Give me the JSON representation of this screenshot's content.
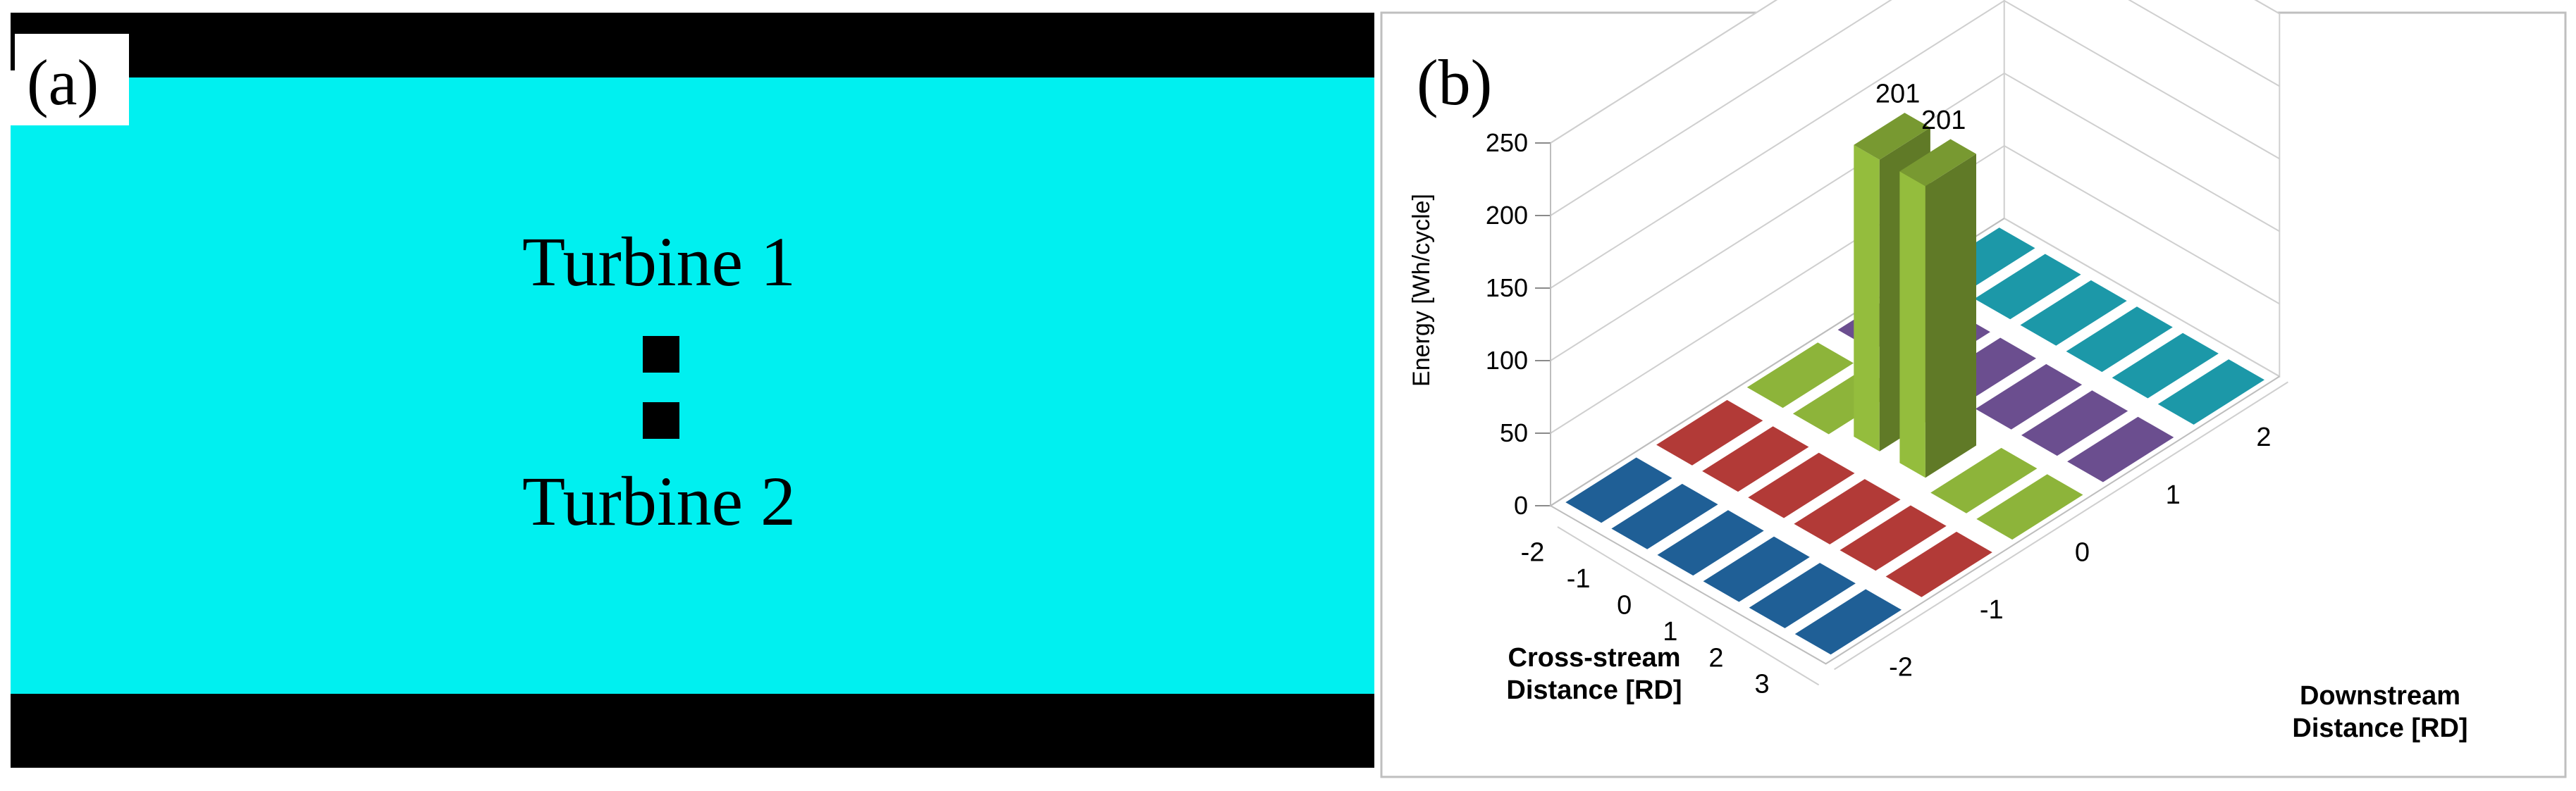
{
  "panel_a": {
    "label": "(a)",
    "turbine_1_label": "Turbine 1",
    "turbine_2_label": "Turbine 2",
    "colors": {
      "water": "#00f0f0",
      "wall": "#000000",
      "turbine": "#000000"
    }
  },
  "panel_b": {
    "label": "(b)"
  },
  "chart_data": {
    "type": "bar",
    "subtype": "3d-bar-grid",
    "title": "",
    "zlabel": "Energy [Wh/cycle]",
    "xlabel": "Cross-stream Distance [RD]",
    "ylabel": "Downstream Distance [RD]",
    "zlim": [
      0,
      250
    ],
    "zticks": [
      "0",
      "50",
      "100",
      "150",
      "200",
      "250"
    ],
    "cross_stream_ticks": [
      "-2",
      "-1",
      "0",
      "1",
      "2",
      "3"
    ],
    "downstream_ticks": [
      "-2",
      "-1",
      "0",
      "1",
      "2"
    ],
    "grid": true,
    "series": [
      {
        "downstream": "-2",
        "color": "#1f5f96",
        "values": [
          0,
          0,
          0,
          0,
          0,
          0
        ]
      },
      {
        "downstream": "-1",
        "color": "#b23a37",
        "values": [
          0,
          0,
          0,
          0,
          0,
          0
        ]
      },
      {
        "downstream": "0",
        "color": "#8db43a",
        "values": [
          0,
          0,
          201,
          201,
          0,
          0
        ]
      },
      {
        "downstream": "1",
        "color": "#6b4e8f",
        "values": [
          0,
          0,
          0,
          0,
          0,
          0
        ]
      },
      {
        "downstream": "2",
        "color": "#1c98a8",
        "values": [
          0,
          0,
          0,
          0,
          0,
          0
        ]
      }
    ],
    "data_labels": [
      "201",
      "201"
    ]
  }
}
